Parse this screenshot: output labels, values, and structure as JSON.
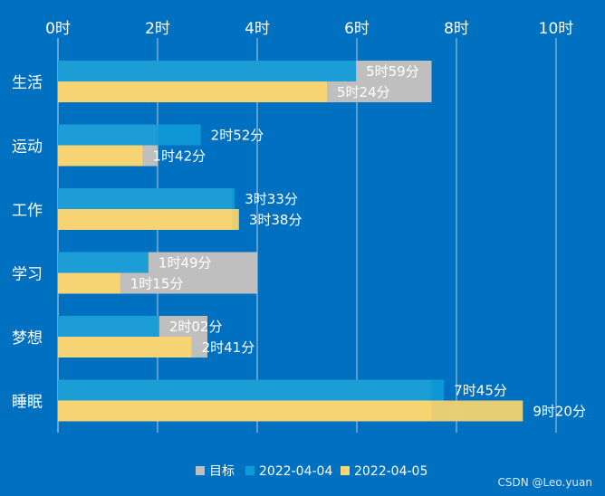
{
  "chart_data": {
    "type": "bar",
    "orientation": "horizontal",
    "unit_suffix": "时",
    "xlim": [
      0,
      10
    ],
    "xticks": [
      0,
      2,
      4,
      6,
      8,
      10
    ],
    "tick_labels": [
      "0时",
      "2时",
      "4时",
      "6时",
      "8时",
      "10时"
    ],
    "categories": [
      "生活",
      "运动",
      "工作",
      "学习",
      "梦想",
      "睡眠"
    ],
    "series": [
      {
        "name": "目标",
        "color": "#bfbfbf",
        "values": [
          7.5,
          2.0,
          3.5,
          4.0,
          3.0,
          7.5
        ],
        "labels": [
          "",
          "",
          "",
          "",
          "",
          ""
        ]
      },
      {
        "name": "2022-04-04",
        "color": "#0f9ad8",
        "values": [
          5.983,
          2.867,
          3.55,
          1.817,
          2.033,
          7.75
        ],
        "labels": [
          "5时59分",
          "2时52分",
          "3时33分",
          "1时49分",
          "2时02分",
          "7时45分"
        ]
      },
      {
        "name": "2022-04-05",
        "color": "#fbd56d",
        "values": [
          5.4,
          1.7,
          3.633,
          1.25,
          2.683,
          9.333
        ],
        "labels": [
          "5时24分",
          "1时42分",
          "3时38分",
          "1时15分",
          "2时41分",
          "9时20分"
        ]
      }
    ],
    "legend": {
      "position": "bottom",
      "entries": [
        "目标",
        "2022-04-04",
        "2022-04-05"
      ]
    },
    "grid": true
  },
  "watermark": "CSDN @Leo.yuan"
}
